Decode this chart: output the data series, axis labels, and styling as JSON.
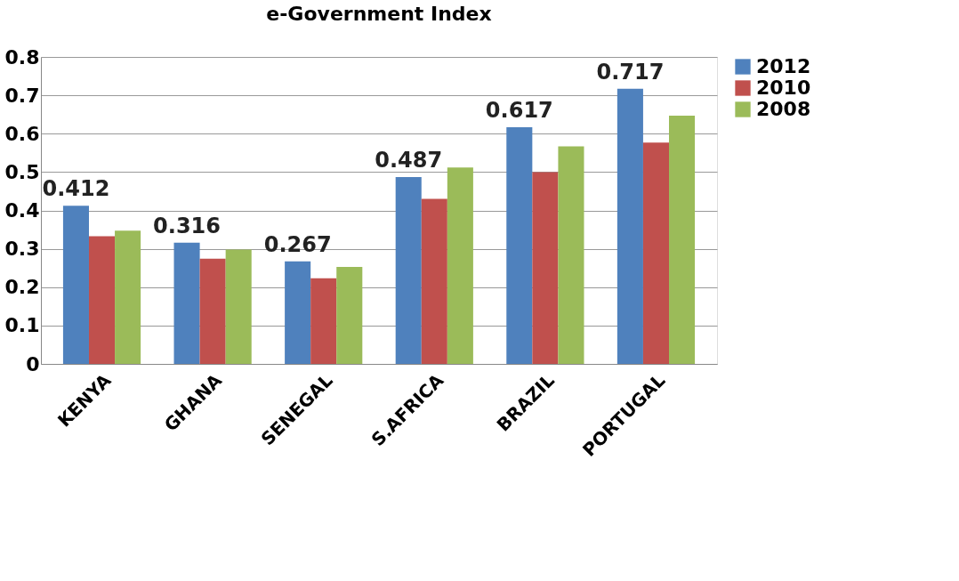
{
  "chart_data": {
    "type": "bar",
    "title": "e-Government Index",
    "categories": [
      "KENYA",
      "GHANA",
      "SENEGAL",
      "S.AFRICA",
      "BRAZIL",
      "PORTUGAL"
    ],
    "series": [
      {
        "name": "2012",
        "color": "#4f81bd",
        "values": [
          0.412,
          0.316,
          0.267,
          0.487,
          0.617,
          0.717
        ],
        "value_labels": [
          "0.412",
          "0.316",
          "0.267",
          "0.487",
          "0.617",
          "0.717"
        ]
      },
      {
        "name": "2010",
        "color": "#c0504d",
        "values": [
          0.333,
          0.274,
          0.223,
          0.43,
          0.5,
          0.577
        ]
      },
      {
        "name": "2008",
        "color": "#9bbb59",
        "values": [
          0.347,
          0.298,
          0.253,
          0.512,
          0.567,
          0.647
        ]
      }
    ],
    "ylim": [
      0,
      0.8
    ],
    "yticks": [
      0,
      0.1,
      0.2,
      0.3,
      0.4,
      0.5,
      0.6,
      0.7,
      0.8
    ],
    "grid": "y",
    "legend": "right"
  }
}
